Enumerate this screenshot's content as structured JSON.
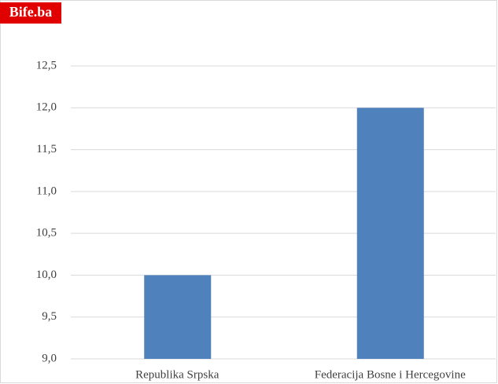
{
  "chart_data": {
    "type": "bar",
    "watermark": "Bife.ba",
    "categories": [
      "Republika Srpska",
      "Federacija Bosne i Hercegovine"
    ],
    "values": [
      10.0,
      12.0
    ],
    "color": "#4f81bd",
    "ylim": [
      9,
      12.5
    ],
    "yticks": [
      {
        "value": 9,
        "label": "9,0"
      },
      {
        "value": 9.5,
        "label": "9,5"
      },
      {
        "value": 10,
        "label": "10,0"
      },
      {
        "value": 10.5,
        "label": "10,5"
      },
      {
        "value": 11,
        "label": "11,0"
      },
      {
        "value": 11.5,
        "label": "11,5"
      },
      {
        "value": 12,
        "label": "12,0"
      },
      {
        "value": 12.5,
        "label": "12,5"
      }
    ],
    "grid": true
  }
}
